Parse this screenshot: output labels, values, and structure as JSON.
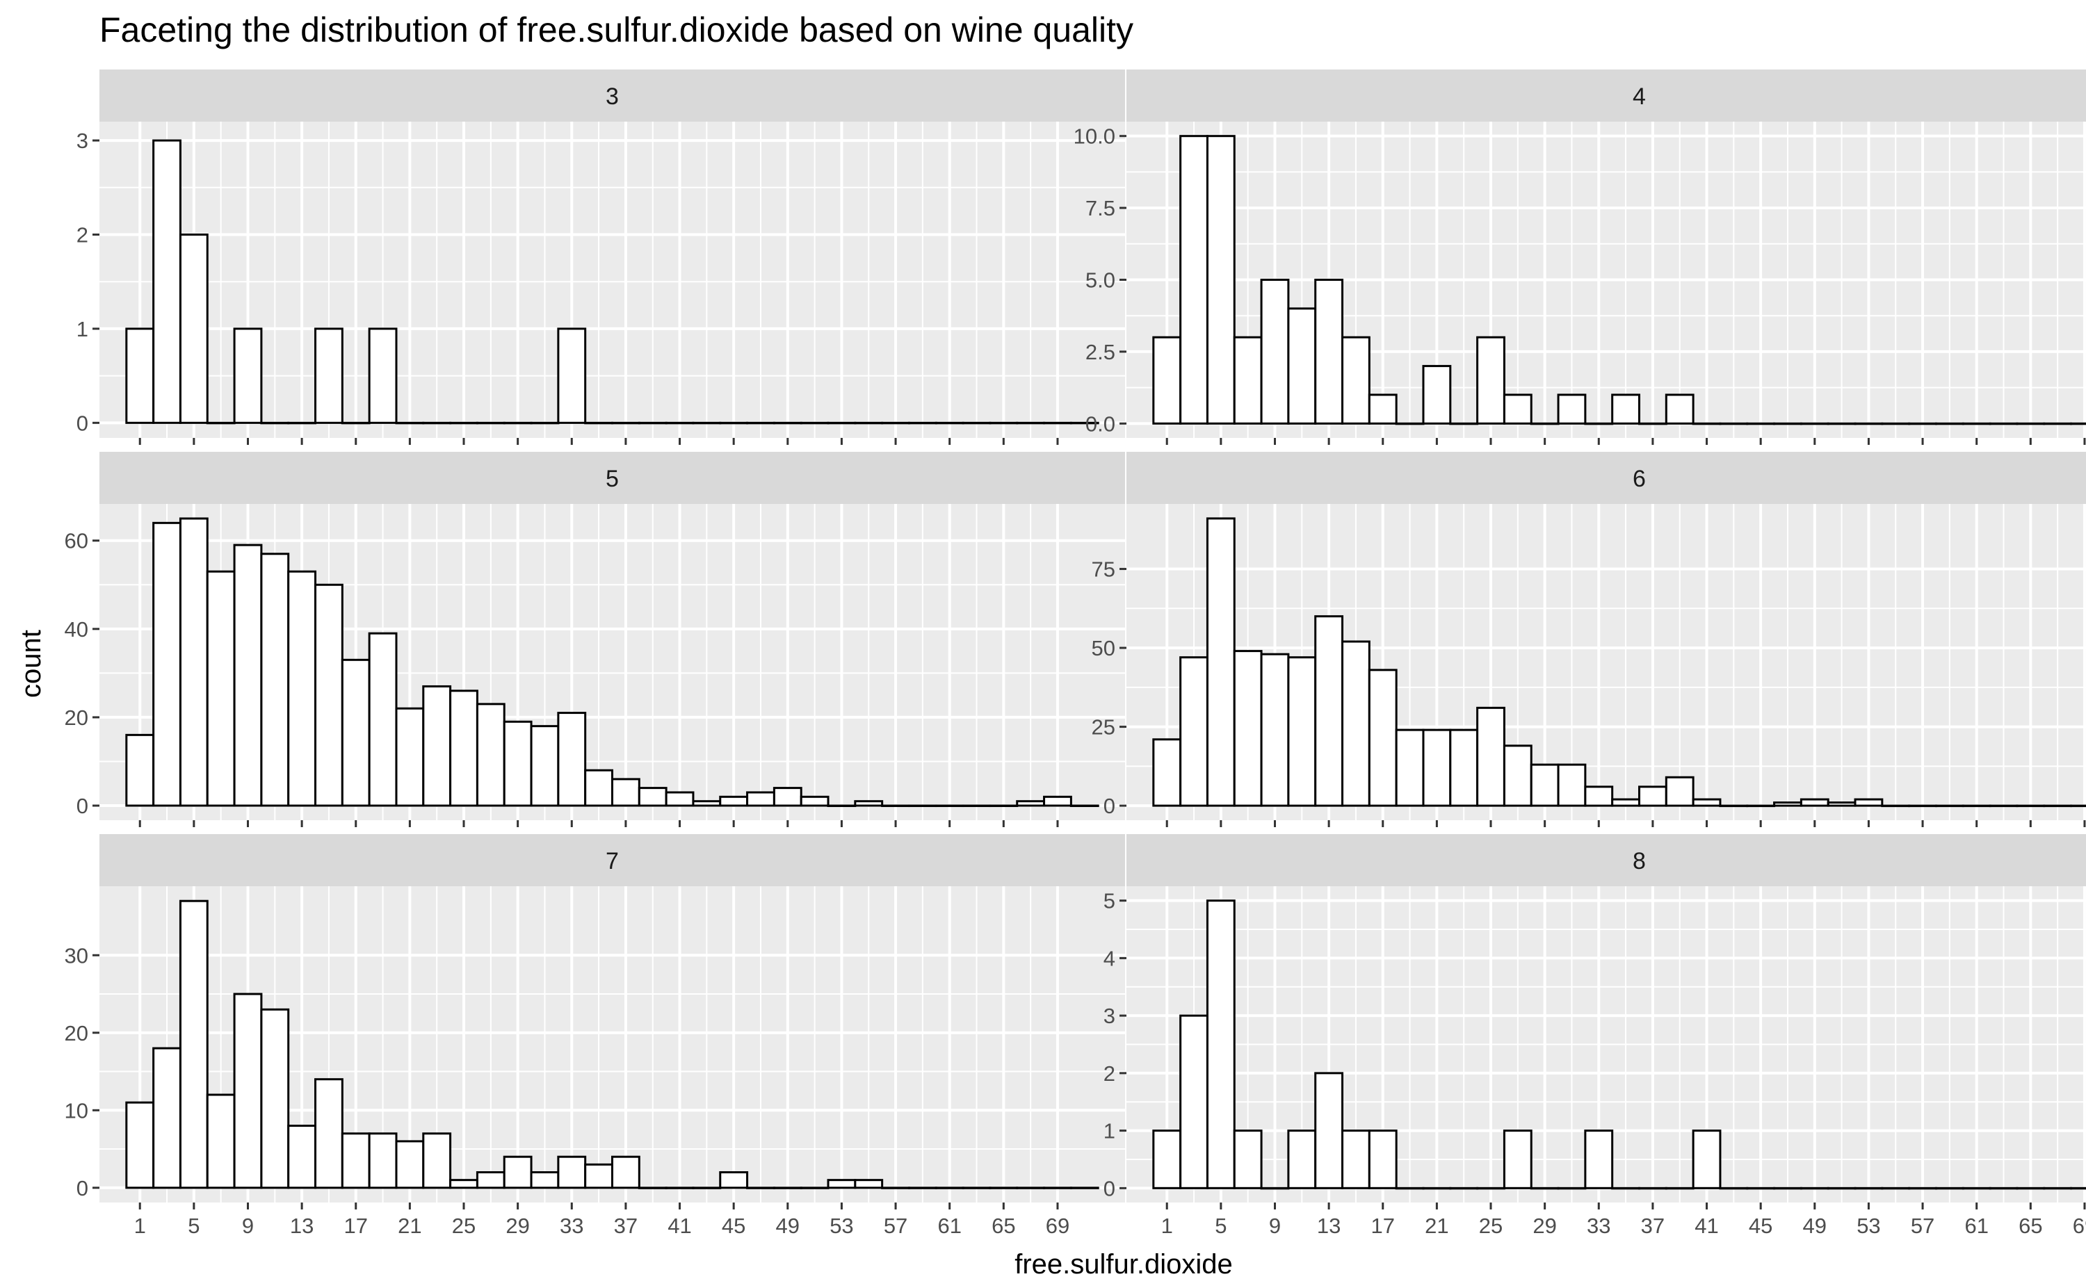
{
  "chart_data": {
    "type": "bar",
    "title": "Faceting the distribution of free.sulfur.dioxide based on wine quality",
    "xlabel": "free.sulfur.dioxide",
    "ylabel": "count",
    "x_ticks": [
      "1",
      "5",
      "9",
      "13",
      "17",
      "21",
      "25",
      "29",
      "33",
      "37",
      "41",
      "45",
      "49",
      "53",
      "57",
      "61",
      "65",
      "69"
    ],
    "bin_width": 2,
    "bin_centers": [
      1,
      3,
      5,
      7,
      9,
      11,
      13,
      15,
      17,
      19,
      21,
      23,
      25,
      27,
      29,
      31,
      33,
      35,
      37,
      39,
      41,
      43,
      45,
      47,
      49,
      51,
      53,
      55,
      57,
      59,
      61,
      63,
      65,
      67,
      69,
      71
    ],
    "xlim": [
      -2,
      74
    ],
    "grid": true,
    "facets": [
      {
        "label": "3",
        "ylim": [
          -0.16,
          3.2
        ],
        "y_ticks": [
          0,
          1,
          2,
          3
        ],
        "y_tick_labels": [
          "0",
          "1",
          "2",
          "3"
        ],
        "values": [
          1,
          3,
          2,
          0,
          1,
          0,
          0,
          1,
          0,
          1,
          0,
          0,
          0,
          0,
          0,
          0,
          1,
          0,
          0,
          0,
          0,
          0,
          0,
          0,
          0,
          0,
          0,
          0,
          0,
          0,
          0,
          0,
          0,
          0,
          0,
          0
        ]
      },
      {
        "label": "4",
        "ylim": [
          -0.5,
          10.5
        ],
        "y_ticks": [
          0,
          2.5,
          5,
          7.5,
          10
        ],
        "y_tick_labels": [
          "0.0",
          "2.5",
          "5.0",
          "7.5",
          "10.0"
        ],
        "values": [
          3,
          10,
          10,
          3,
          5,
          4,
          5,
          3,
          1,
          0,
          2,
          0,
          3,
          1,
          0,
          1,
          0,
          1,
          0,
          1,
          0,
          0,
          0,
          0,
          0,
          0,
          0,
          0,
          0,
          0,
          0,
          0,
          0,
          0,
          0,
          0
        ]
      },
      {
        "label": "5",
        "ylim": [
          -3.3,
          68.3
        ],
        "y_ticks": [
          0,
          20,
          40,
          60
        ],
        "y_tick_labels": [
          "0",
          "20",
          "40",
          "60"
        ],
        "values": [
          16,
          64,
          65,
          53,
          59,
          57,
          53,
          50,
          33,
          39,
          22,
          27,
          26,
          23,
          19,
          18,
          21,
          8,
          6,
          4,
          3,
          1,
          2,
          3,
          4,
          2,
          0,
          1,
          0,
          0,
          0,
          0,
          0,
          1,
          2,
          0
        ]
      },
      {
        "label": "6",
        "ylim": [
          -4.6,
          95.6
        ],
        "y_ticks": [
          0,
          25,
          50,
          75
        ],
        "y_tick_labels": [
          "0",
          "25",
          "50",
          "75"
        ],
        "values": [
          21,
          47,
          91,
          49,
          48,
          47,
          60,
          52,
          43,
          24,
          24,
          24,
          31,
          19,
          13,
          13,
          6,
          2,
          6,
          9,
          2,
          0,
          0,
          1,
          2,
          1,
          2,
          0,
          0,
          0,
          0,
          0,
          0,
          0,
          0,
          0
        ]
      },
      {
        "label": "7",
        "ylim": [
          -1.9,
          38.9
        ],
        "y_ticks": [
          0,
          10,
          20,
          30
        ],
        "y_tick_labels": [
          "0",
          "10",
          "20",
          "30"
        ],
        "values": [
          11,
          18,
          37,
          12,
          25,
          23,
          8,
          14,
          7,
          7,
          6,
          7,
          1,
          2,
          4,
          2,
          4,
          3,
          4,
          0,
          0,
          0,
          2,
          0,
          0,
          0,
          1,
          1,
          0,
          0,
          0,
          0,
          0,
          0,
          0,
          0
        ]
      },
      {
        "label": "8",
        "ylim": [
          -0.25,
          5.25
        ],
        "y_ticks": [
          0,
          1,
          2,
          3,
          4,
          5
        ],
        "y_tick_labels": [
          "0",
          "1",
          "2",
          "3",
          "4",
          "5"
        ],
        "values": [
          1,
          3,
          5,
          1,
          0,
          1,
          2,
          1,
          1,
          0,
          0,
          0,
          0,
          1,
          0,
          0,
          1,
          0,
          0,
          0,
          1,
          0,
          0,
          0,
          0,
          0,
          0,
          0,
          0,
          0,
          0,
          0,
          0,
          0,
          0,
          0
        ]
      }
    ]
  }
}
